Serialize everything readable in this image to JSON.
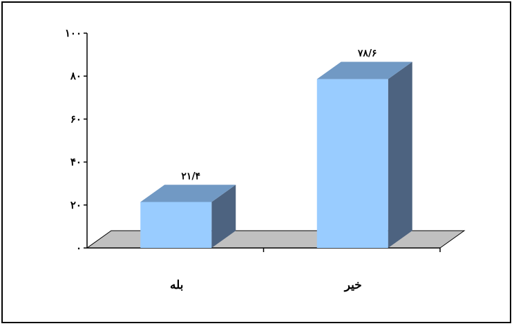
{
  "chart_data": {
    "type": "bar",
    "categories": [
      "بله",
      "خیر"
    ],
    "values": [
      21.4,
      78.6
    ],
    "data_labels": [
      "۲۱/۴",
      "۷۸/۶"
    ],
    "yticks": [
      0,
      20,
      40,
      60,
      80,
      100
    ],
    "ytick_labels": [
      "۰",
      "۲۰",
      "۴۰",
      "۶۰",
      "۸۰",
      "۱۰۰"
    ],
    "ylim": [
      0,
      100
    ],
    "title": "",
    "xlabel": "",
    "ylabel": "",
    "grid": false,
    "legend": false,
    "style": "3d-column",
    "colors": {
      "bar_front": "#99CCFF",
      "bar_top": "#7199C4",
      "bar_side": "#4D6380",
      "floor": "#C0C0C0",
      "axis": "#000000"
    }
  }
}
